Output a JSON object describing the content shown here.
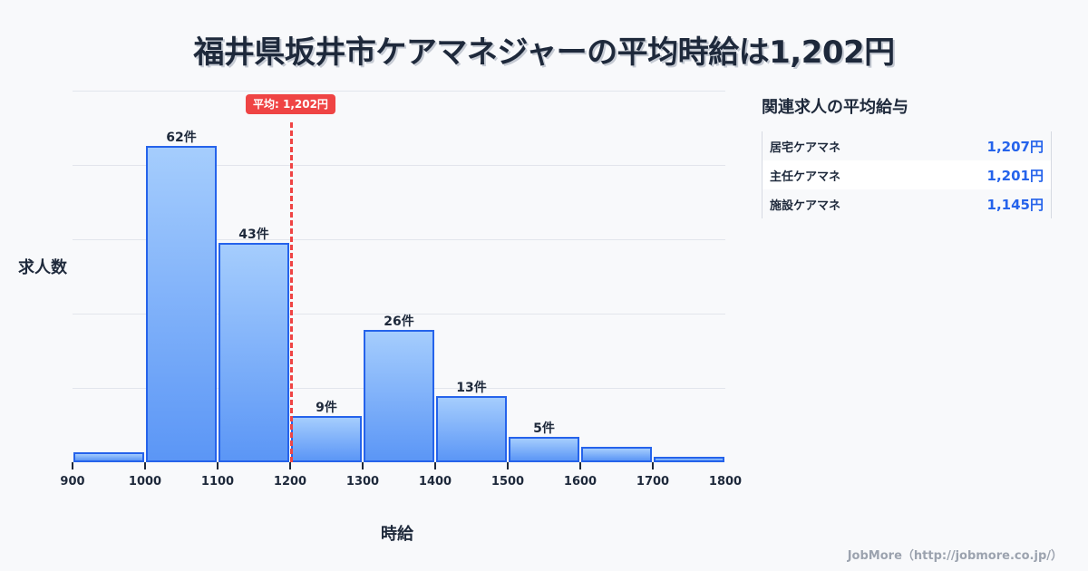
{
  "title": "福井県坂井市ケアマネジャーの平均時給は1,202円",
  "chart_data": {
    "type": "bar",
    "subtype": "histogram",
    "title": "福井県坂井市ケアマネジャーの平均時給は1,202円",
    "xlabel": "時給",
    "ylabel": "求人数",
    "bin_edges": [
      900,
      1000,
      1100,
      1200,
      1300,
      1400,
      1500,
      1600,
      1700,
      1800
    ],
    "categories": [
      "900-1000",
      "1000-1100",
      "1100-1200",
      "1200-1300",
      "1300-1400",
      "1400-1500",
      "1500-1600",
      "1600-1700",
      "1700-1800"
    ],
    "values": [
      2,
      62,
      43,
      9,
      26,
      13,
      5,
      3,
      1
    ],
    "data_labels": [
      "",
      "62件",
      "43件",
      "9件",
      "26件",
      "13件",
      "5件",
      "",
      ""
    ],
    "x_ticks": [
      "900",
      "1000",
      "1100",
      "1200",
      "1300",
      "1400",
      "1500",
      "1600",
      "1700",
      "1800"
    ],
    "xlim": [
      900,
      1800
    ],
    "ylim": [
      0,
      73
    ],
    "grid": true,
    "mean_line": {
      "value": 1202,
      "label": "平均: 1,202円",
      "color": "#ef4444"
    },
    "bar_color": "#2563eb"
  },
  "sidebar": {
    "title": "関連求人の平均給与",
    "rows": [
      {
        "name": "居宅ケアマネ",
        "value": "1,207円"
      },
      {
        "name": "主任ケアマネ",
        "value": "1,201円"
      },
      {
        "name": "施設ケアマネ",
        "value": "1,145円"
      }
    ]
  },
  "credit": "JobMore（http://jobmore.co.jp/）"
}
